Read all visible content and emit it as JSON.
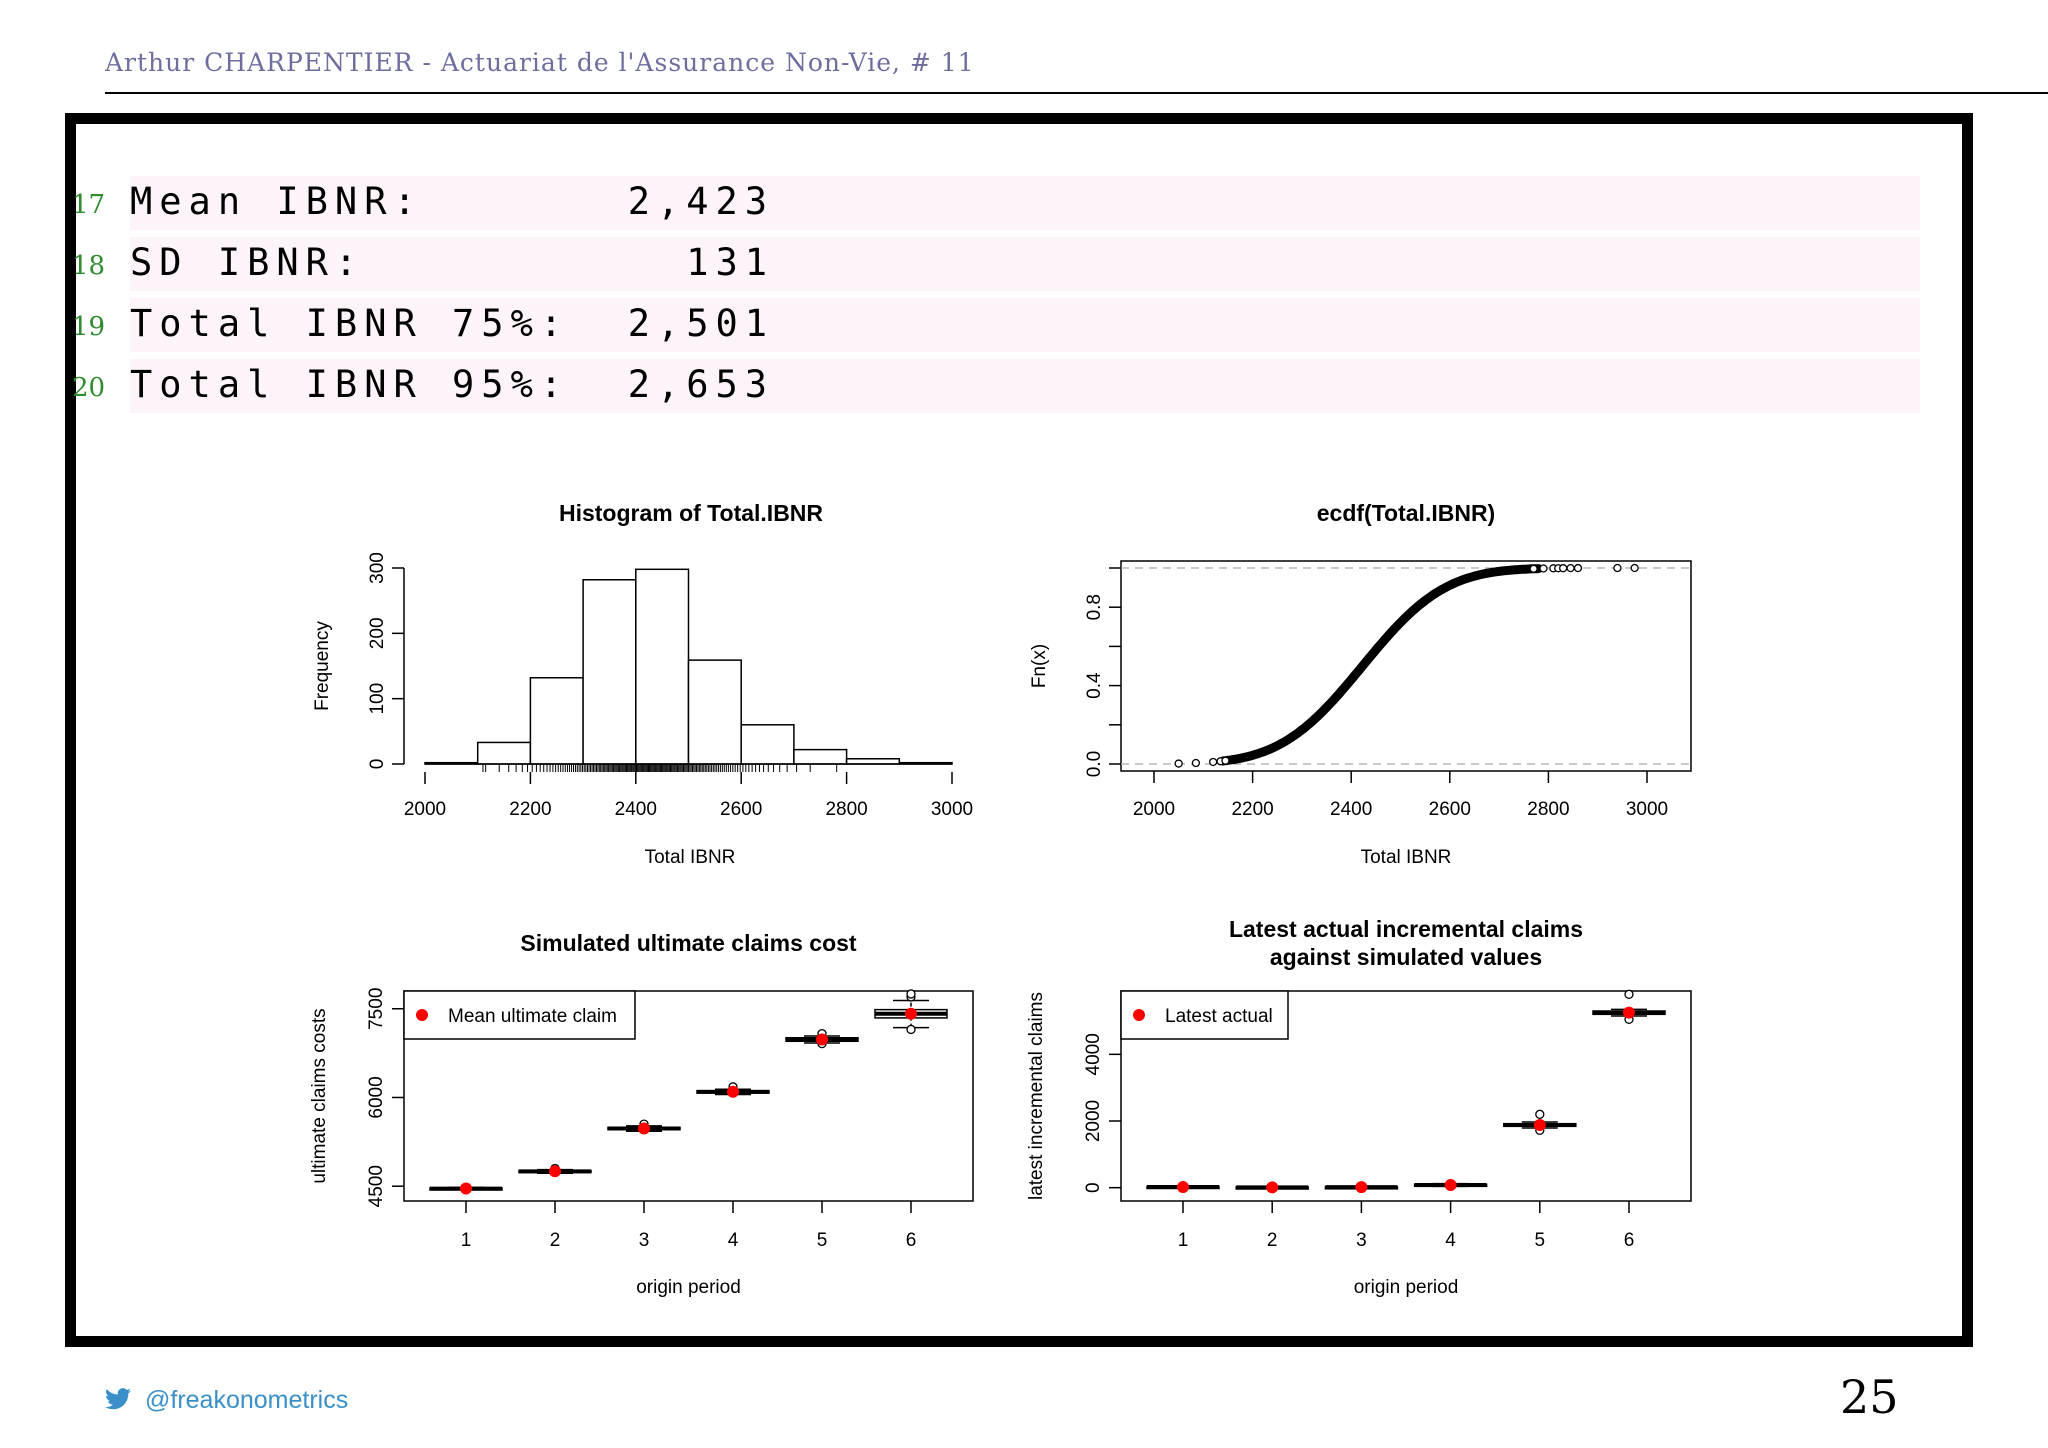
{
  "header": {
    "title": "Arthur CHARPENTIER - Actuariat de l'Assurance Non-Vie, # 11"
  },
  "code_lines": [
    {
      "num": "17",
      "text": "Mean IBNR:       2,423"
    },
    {
      "num": "18",
      "text": "SD IBNR:           131"
    },
    {
      "num": "19",
      "text": "Total IBNR 75%:  2,501"
    },
    {
      "num": "20",
      "text": "Total IBNR 95%:  2,653"
    }
  ],
  "footer": {
    "handle": "@freakonometrics",
    "page": "25",
    "icon": "twitter-bird-icon",
    "handle_color": "#3a8fc8"
  },
  "chart_data": [
    {
      "type": "bar",
      "title": "Histogram of Total.IBNR",
      "xlabel": "Total IBNR",
      "ylabel": "Frequency",
      "bin_edges": [
        2000,
        2100,
        2200,
        2300,
        2400,
        2500,
        2600,
        2700,
        2800,
        2900,
        3000
      ],
      "values": [
        2,
        33,
        132,
        282,
        298,
        159,
        60,
        22,
        8,
        2
      ],
      "xlim": [
        2000,
        3000
      ],
      "ylim": [
        0,
        300
      ],
      "xticks": [
        "2000",
        "2200",
        "2400",
        "2600",
        "2800",
        "3000"
      ],
      "yticks": [
        "0",
        "100",
        "200",
        "300"
      ],
      "rug": true
    },
    {
      "type": "line",
      "title": "ecdf(Total.IBNR)",
      "xlabel": "Total IBNR",
      "ylabel": "Fn(x)",
      "mean": 2423,
      "sd": 131,
      "xlim": [
        1950,
        3100
      ],
      "ylim": [
        0,
        1
      ],
      "xticks": [
        "2000",
        "2200",
        "2400",
        "2600",
        "2800",
        "3000"
      ],
      "yticks": [
        "0.0",
        "0.4",
        "0.8"
      ],
      "outliers_low": [
        2050,
        2085,
        2120,
        2135,
        2145
      ],
      "outliers_high": [
        2770,
        2790,
        2810,
        2820,
        2830,
        2845,
        2860,
        2940,
        2975
      ]
    },
    {
      "type": "box",
      "title": "Simulated ultimate claims cost",
      "xlabel": "origin period",
      "ylabel": "ultimate claims costs",
      "categories": [
        "1",
        "2",
        "3",
        "4",
        "5",
        "6"
      ],
      "ylim": [
        4250,
        7800
      ],
      "yticks": [
        "4500",
        "6000",
        "7500"
      ],
      "medians": [
        4460,
        4750,
        5475,
        6095,
        6980,
        7415
      ],
      "q1": [
        4450,
        4735,
        5455,
        6075,
        6950,
        7345
      ],
      "q3": [
        4470,
        4765,
        5495,
        6115,
        7010,
        7485
      ],
      "lo": [
        4440,
        4720,
        5430,
        6050,
        6920,
        7180
      ],
      "hi": [
        4480,
        4780,
        5520,
        6140,
        7040,
        7640
      ],
      "outliers": [
        [],
        [
          4800
        ],
        [
          5550
        ],
        [
          6180
        ],
        [
          7080,
          6910
        ],
        [
          7700,
          7750,
          7150
        ]
      ],
      "means": [
        4461,
        4752,
        5475,
        6096,
        6981,
        7416
      ],
      "legend": "Mean ultimate claim"
    },
    {
      "type": "box",
      "title": "Latest actual incremental claims",
      "title2": "against simulated values",
      "xlabel": "origin period",
      "ylabel": "latest incremental claims",
      "categories": [
        "1",
        "2",
        "3",
        "4",
        "5",
        "6"
      ],
      "ylim": [
        -400,
        5900
      ],
      "yticks": [
        "0",
        "2000",
        "4000"
      ],
      "medians": [
        20,
        10,
        15,
        80,
        1880,
        5250
      ],
      "q1": [
        5,
        0,
        5,
        60,
        1840,
        5200
      ],
      "q3": [
        35,
        20,
        25,
        100,
        1920,
        5300
      ],
      "lo": [
        0,
        -10,
        0,
        40,
        1790,
        5150
      ],
      "hi": [
        45,
        30,
        35,
        120,
        1970,
        5350
      ],
      "outliers": [
        [],
        [],
        [],
        [],
        [
          2200,
          1720
        ],
        [
          5800,
          5050
        ]
      ],
      "means": [
        20,
        10,
        15,
        80,
        1880,
        5250
      ],
      "legend": "Latest actual"
    }
  ],
  "colors": {
    "mean_point": "#ff0000",
    "header": "#6e6e9e",
    "lineno": "#2e8b2e",
    "code_bg": "#fcf4f8"
  }
}
